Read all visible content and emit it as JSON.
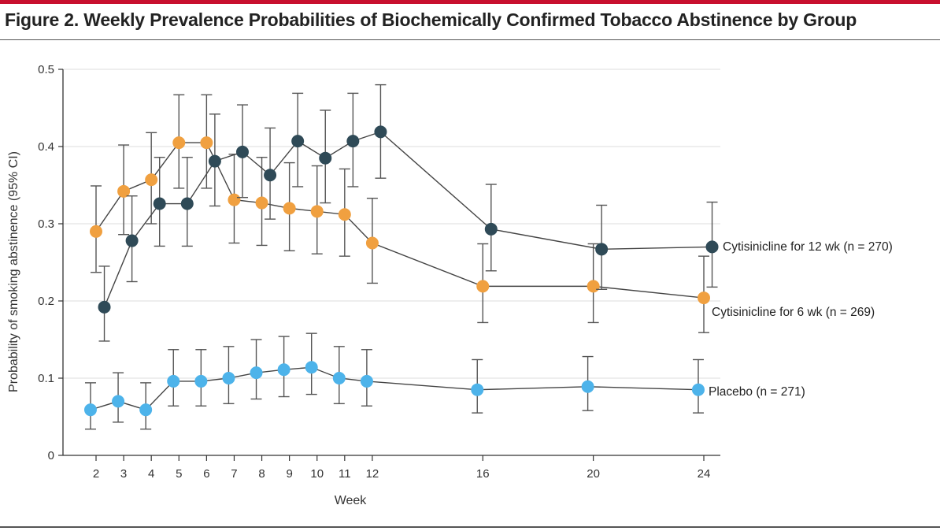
{
  "figure": {
    "title": "Figure 2. Weekly Prevalence Probabilities of Biochemically Confirmed Tobacco Abstinence by Group"
  },
  "colors": {
    "accent_rule": "#c8102e",
    "twelve_wk": "#2f4a57",
    "six_wk": "#f0a040",
    "placebo": "#4db3ea",
    "error_bar": "#555555",
    "grid": "#dddddd"
  },
  "chart_data": {
    "type": "line",
    "xlabel": "Week",
    "ylabel": "Probability of smoking abstinence (95% CI)",
    "ylim": [
      0,
      0.5
    ],
    "yticks": [
      0,
      0.1,
      0.2,
      0.3,
      0.4,
      0.5
    ],
    "ytick_labels": [
      "0",
      "0.1",
      "0.2",
      "0.3",
      "0.4",
      "0.5"
    ],
    "xticks": [
      2,
      3,
      4,
      5,
      6,
      7,
      8,
      9,
      10,
      11,
      12,
      16,
      20,
      24
    ],
    "xtick_labels": [
      "2",
      "3",
      "4",
      "5",
      "6",
      "7",
      "8",
      "9",
      "10",
      "11",
      "12",
      "16",
      "20",
      "24"
    ],
    "grid": "horizontal",
    "series": [
      {
        "name": "Cytisinicline for 12 wk (n = 270)",
        "color": "#2f4a57",
        "points": [
          {
            "x": 2.3,
            "y": 0.192,
            "lo": 0.148,
            "hi": 0.245
          },
          {
            "x": 3.3,
            "y": 0.278,
            "lo": 0.225,
            "hi": 0.336
          },
          {
            "x": 4.3,
            "y": 0.326,
            "lo": 0.271,
            "hi": 0.386
          },
          {
            "x": 5.3,
            "y": 0.326,
            "lo": 0.271,
            "hi": 0.386
          },
          {
            "x": 6.3,
            "y": 0.381,
            "lo": 0.323,
            "hi": 0.442
          },
          {
            "x": 7.3,
            "y": 0.393,
            "lo": 0.334,
            "hi": 0.454
          },
          {
            "x": 8.3,
            "y": 0.363,
            "lo": 0.306,
            "hi": 0.424
          },
          {
            "x": 9.3,
            "y": 0.407,
            "lo": 0.348,
            "hi": 0.469
          },
          {
            "x": 10.3,
            "y": 0.385,
            "lo": 0.327,
            "hi": 0.447
          },
          {
            "x": 11.3,
            "y": 0.407,
            "lo": 0.348,
            "hi": 0.469
          },
          {
            "x": 12.3,
            "y": 0.419,
            "lo": 0.359,
            "hi": 0.48
          },
          {
            "x": 16.3,
            "y": 0.293,
            "lo": 0.239,
            "hi": 0.351
          },
          {
            "x": 20.3,
            "y": 0.267,
            "lo": 0.215,
            "hi": 0.324
          },
          {
            "x": 24.3,
            "y": 0.27,
            "lo": 0.218,
            "hi": 0.328
          }
        ]
      },
      {
        "name": "Cytisinicline for 6 wk (n = 269)",
        "color": "#f0a040",
        "points": [
          {
            "x": 2,
            "y": 0.29,
            "lo": 0.237,
            "hi": 0.349
          },
          {
            "x": 3,
            "y": 0.342,
            "lo": 0.286,
            "hi": 0.402
          },
          {
            "x": 4,
            "y": 0.357,
            "lo": 0.3,
            "hi": 0.418
          },
          {
            "x": 5,
            "y": 0.405,
            "lo": 0.346,
            "hi": 0.467
          },
          {
            "x": 6,
            "y": 0.405,
            "lo": 0.346,
            "hi": 0.467
          },
          {
            "x": 7,
            "y": 0.331,
            "lo": 0.275,
            "hi": 0.39
          },
          {
            "x": 8,
            "y": 0.327,
            "lo": 0.272,
            "hi": 0.386
          },
          {
            "x": 9,
            "y": 0.32,
            "lo": 0.265,
            "hi": 0.379
          },
          {
            "x": 10,
            "y": 0.316,
            "lo": 0.261,
            "hi": 0.375
          },
          {
            "x": 11,
            "y": 0.312,
            "lo": 0.258,
            "hi": 0.371
          },
          {
            "x": 12,
            "y": 0.275,
            "lo": 0.223,
            "hi": 0.333
          },
          {
            "x": 16,
            "y": 0.219,
            "lo": 0.172,
            "hi": 0.274
          },
          {
            "x": 20,
            "y": 0.219,
            "lo": 0.172,
            "hi": 0.274
          },
          {
            "x": 24,
            "y": 0.204,
            "lo": 0.159,
            "hi": 0.258
          }
        ]
      },
      {
        "name": "Placebo (n = 271)",
        "color": "#4db3ea",
        "points": [
          {
            "x": 1.8,
            "y": 0.059,
            "lo": 0.034,
            "hi": 0.094
          },
          {
            "x": 2.8,
            "y": 0.07,
            "lo": 0.043,
            "hi": 0.107
          },
          {
            "x": 3.8,
            "y": 0.059,
            "lo": 0.034,
            "hi": 0.094
          },
          {
            "x": 4.8,
            "y": 0.096,
            "lo": 0.064,
            "hi": 0.137
          },
          {
            "x": 5.8,
            "y": 0.096,
            "lo": 0.064,
            "hi": 0.137
          },
          {
            "x": 6.8,
            "y": 0.1,
            "lo": 0.067,
            "hi": 0.141
          },
          {
            "x": 7.8,
            "y": 0.107,
            "lo": 0.073,
            "hi": 0.15
          },
          {
            "x": 8.8,
            "y": 0.111,
            "lo": 0.076,
            "hi": 0.154
          },
          {
            "x": 9.8,
            "y": 0.114,
            "lo": 0.079,
            "hi": 0.158
          },
          {
            "x": 10.8,
            "y": 0.1,
            "lo": 0.067,
            "hi": 0.141
          },
          {
            "x": 11.8,
            "y": 0.096,
            "lo": 0.064,
            "hi": 0.137
          },
          {
            "x": 15.8,
            "y": 0.085,
            "lo": 0.055,
            "hi": 0.124
          },
          {
            "x": 19.8,
            "y": 0.089,
            "lo": 0.058,
            "hi": 0.128
          },
          {
            "x": 23.8,
            "y": 0.085,
            "lo": 0.055,
            "hi": 0.124
          }
        ]
      }
    ]
  }
}
